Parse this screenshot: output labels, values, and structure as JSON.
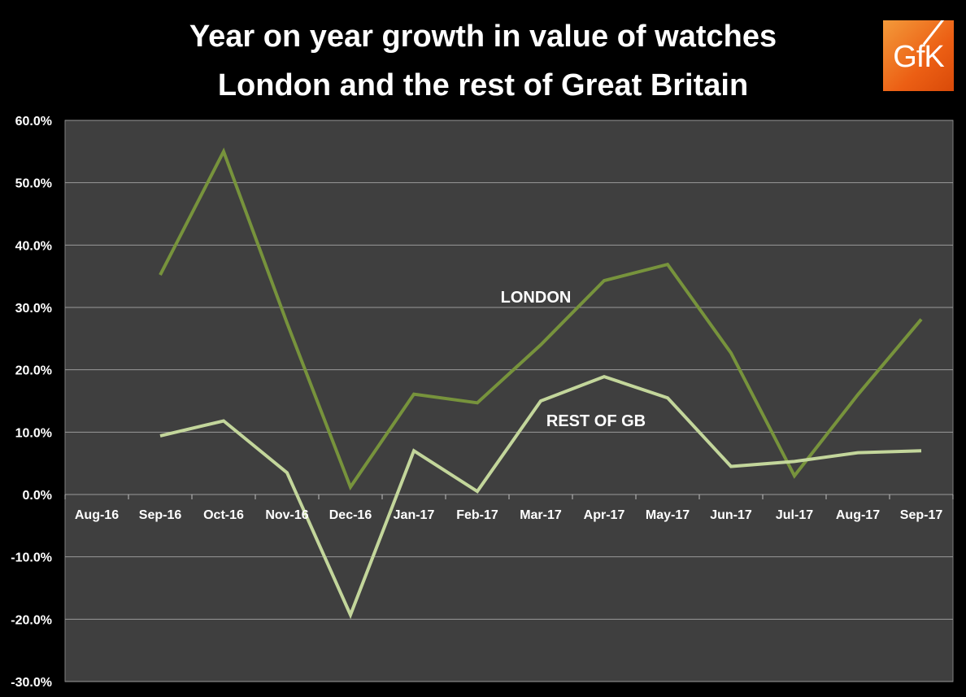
{
  "chart_data": {
    "type": "line",
    "title": "Year on year growth in value of watches",
    "subtitle": "London and the rest of Great Britain",
    "xlabel": "",
    "ylabel": "",
    "categories": [
      "Aug-16",
      "Sep-16",
      "Oct-16",
      "Nov-16",
      "Dec-16",
      "Jan-17",
      "Feb-17",
      "Mar-17",
      "Apr-17",
      "May-17",
      "Jun-17",
      "Jul-17",
      "Aug-17",
      "Sep-17"
    ],
    "ylim": [
      -30,
      60
    ],
    "yticks": [
      60,
      50,
      40,
      30,
      20,
      10,
      0,
      -10,
      -20,
      -30
    ],
    "ytick_labels": [
      "60.0%",
      "50.0%",
      "40.0%",
      "30.0%",
      "20.0%",
      "10.0%",
      "0.0%",
      "-10.0%",
      "-20.0%",
      "-30.0%"
    ],
    "grid": true,
    "series": [
      {
        "name": "LONDON",
        "color": "#77933c",
        "values": [
          null,
          35.2,
          55.0,
          27.5,
          1.2,
          16.1,
          14.7,
          24.0,
          34.3,
          36.9,
          22.7,
          3.0,
          16.0,
          28.1
        ]
      },
      {
        "name": "REST OF GB",
        "color": "#c3d69b",
        "values": [
          null,
          9.4,
          11.8,
          3.5,
          -19.3,
          7.0,
          0.5,
          15.0,
          18.9,
          15.5,
          4.5,
          5.3,
          6.7,
          7.0
        ]
      }
    ]
  },
  "logo": {
    "text": "GfK"
  }
}
